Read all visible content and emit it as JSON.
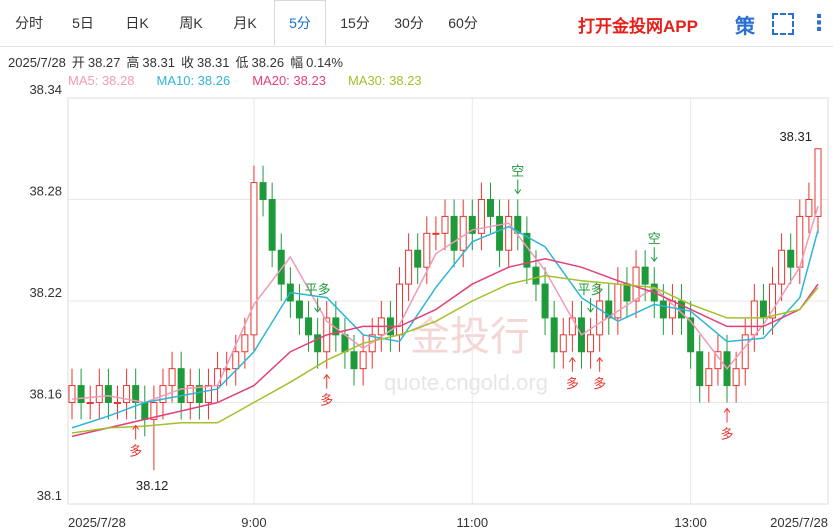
{
  "tabs": [
    "分时",
    "5日",
    "日K",
    "周K",
    "月K",
    "5分",
    "15分",
    "30分",
    "60分"
  ],
  "active_tab": 5,
  "app_link": "打开金投网APP",
  "icon": "策",
  "info": {
    "date": "2025/7/28",
    "items": [
      {
        "label": "开",
        "value": "38.27"
      },
      {
        "label": "高",
        "value": "38.31"
      },
      {
        "label": "收",
        "value": "38.31"
      },
      {
        "label": "低",
        "value": "38.26"
      },
      {
        "label": "幅",
        "value": "0.14%"
      }
    ]
  },
  "watermark": [
    "金投行",
    "quote.cngold.org"
  ],
  "chart_data": {
    "type": "candlestick",
    "up_color": "#e8352f",
    "down_color": "#1e9a3a",
    "grid": true,
    "categories": [
      "2025/7/28",
      null,
      null,
      null,
      null,
      null,
      null,
      null,
      null,
      null,
      null,
      null,
      null,
      null,
      null,
      null,
      null,
      null,
      null,
      null,
      "9:00",
      null,
      null,
      null,
      null,
      null,
      null,
      null,
      null,
      null,
      null,
      null,
      null,
      null,
      null,
      null,
      null,
      null,
      null,
      null,
      null,
      null,
      null,
      null,
      "11:00",
      null,
      null,
      null,
      null,
      null,
      null,
      null,
      null,
      null,
      null,
      null,
      null,
      null,
      null,
      null,
      null,
      null,
      null,
      null,
      null,
      null,
      null,
      null,
      "13:00",
      null,
      null,
      null,
      null,
      null,
      null,
      null,
      null,
      null,
      null,
      null,
      null,
      null,
      "2025/7/28"
    ],
    "open": [
      38.16,
      38.17,
      38.16,
      38.16,
      38.17,
      38.16,
      38.16,
      38.17,
      38.16,
      38.15,
      38.16,
      38.17,
      38.18,
      38.16,
      38.17,
      38.16,
      38.17,
      38.18,
      38.18,
      38.19,
      38.2,
      38.29,
      38.28,
      38.25,
      38.23,
      38.22,
      38.21,
      38.2,
      38.19,
      38.21,
      38.2,
      38.19,
      38.18,
      38.19,
      38.2,
      38.21,
      38.2,
      38.23,
      38.25,
      38.24,
      38.26,
      38.26,
      38.27,
      38.25,
      38.27,
      38.26,
      38.28,
      38.27,
      38.25,
      38.27,
      38.26,
      38.24,
      38.23,
      38.21,
      38.19,
      38.2,
      38.21,
      38.19,
      38.2,
      38.22,
      38.21,
      38.23,
      38.22,
      38.24,
      38.23,
      38.22,
      38.21,
      38.22,
      38.21,
      38.19,
      38.17,
      38.18,
      38.19,
      38.17,
      38.18,
      38.2,
      38.22,
      38.21,
      38.23,
      38.25,
      38.24,
      38.27,
      38.27
    ],
    "close": [
      38.17,
      38.16,
      38.16,
      38.17,
      38.16,
      38.16,
      38.17,
      38.16,
      38.15,
      38.16,
      38.17,
      38.18,
      38.16,
      38.17,
      38.16,
      38.17,
      38.18,
      38.18,
      38.19,
      38.2,
      38.29,
      38.28,
      38.25,
      38.23,
      38.22,
      38.21,
      38.2,
      38.19,
      38.21,
      38.2,
      38.19,
      38.18,
      38.19,
      38.2,
      38.21,
      38.2,
      38.23,
      38.25,
      38.24,
      38.26,
      38.26,
      38.27,
      38.25,
      38.27,
      38.26,
      38.28,
      38.27,
      38.25,
      38.27,
      38.26,
      38.24,
      38.23,
      38.21,
      38.19,
      38.2,
      38.21,
      38.19,
      38.2,
      38.22,
      38.21,
      38.23,
      38.22,
      38.24,
      38.23,
      38.22,
      38.21,
      38.22,
      38.21,
      38.19,
      38.17,
      38.18,
      38.19,
      38.17,
      38.18,
      38.2,
      38.22,
      38.21,
      38.23,
      38.25,
      38.24,
      38.27,
      38.28,
      38.31
    ],
    "high": [
      38.18,
      38.18,
      38.17,
      38.18,
      38.18,
      38.17,
      38.18,
      38.18,
      38.17,
      38.17,
      38.18,
      38.19,
      38.19,
      38.18,
      38.18,
      38.18,
      38.19,
      38.19,
      38.2,
      38.21,
      38.3,
      38.3,
      38.29,
      38.26,
      38.24,
      38.23,
      38.22,
      38.21,
      38.22,
      38.22,
      38.21,
      38.2,
      38.2,
      38.21,
      38.22,
      38.22,
      38.24,
      38.26,
      38.26,
      38.27,
      38.27,
      38.28,
      38.28,
      38.28,
      38.28,
      38.29,
      38.29,
      38.28,
      38.28,
      38.28,
      38.27,
      38.25,
      38.24,
      38.22,
      38.21,
      38.22,
      38.22,
      38.21,
      38.23,
      38.23,
      38.24,
      38.24,
      38.25,
      38.25,
      38.24,
      38.23,
      38.23,
      38.23,
      38.22,
      38.2,
      38.19,
      38.2,
      38.2,
      38.19,
      38.21,
      38.23,
      38.23,
      38.24,
      38.26,
      38.26,
      38.28,
      38.29,
      38.31
    ],
    "low": [
      38.15,
      38.15,
      38.15,
      38.15,
      38.15,
      38.15,
      38.15,
      38.15,
      38.14,
      38.12,
      38.15,
      38.16,
      38.15,
      38.15,
      38.15,
      38.15,
      38.16,
      38.17,
      38.17,
      38.18,
      38.19,
      38.27,
      38.24,
      38.22,
      38.21,
      38.2,
      38.19,
      38.18,
      38.18,
      38.19,
      38.18,
      38.17,
      38.17,
      38.18,
      38.19,
      38.19,
      38.19,
      38.22,
      38.23,
      38.23,
      38.25,
      38.25,
      38.24,
      38.24,
      38.25,
      38.25,
      38.26,
      38.24,
      38.24,
      38.25,
      38.23,
      38.22,
      38.2,
      38.18,
      38.18,
      38.19,
      38.18,
      38.18,
      38.19,
      38.2,
      38.2,
      38.21,
      38.21,
      38.22,
      38.21,
      38.2,
      38.2,
      38.2,
      38.18,
      38.16,
      38.16,
      38.17,
      38.16,
      38.16,
      38.17,
      38.19,
      38.2,
      38.2,
      38.22,
      38.23,
      38.23,
      38.26,
      38.26
    ],
    "ylim": [
      38.1,
      38.34
    ],
    "yticks": [
      38.1,
      38.16,
      38.22,
      38.28,
      38.34
    ],
    "series": [
      {
        "name": "MA5: 38.28",
        "color": "#f29ab8",
        "x": [
          0,
          4,
          8,
          12,
          16,
          20,
          24,
          28,
          32,
          36,
          40,
          44,
          48,
          52,
          56,
          60,
          64,
          68,
          72,
          76,
          80,
          82
        ],
        "values": [
          38.162,
          38.164,
          38.16,
          38.168,
          38.17,
          38.218,
          38.246,
          38.208,
          38.192,
          38.206,
          38.248,
          38.262,
          38.266,
          38.238,
          38.2,
          38.214,
          38.228,
          38.208,
          38.18,
          38.206,
          38.24,
          38.276
        ]
      },
      {
        "name": "MA10: 38.26",
        "color": "#2fb5d6",
        "x": [
          0,
          4,
          8,
          12,
          16,
          20,
          24,
          28,
          32,
          36,
          40,
          44,
          48,
          52,
          56,
          60,
          64,
          68,
          72,
          76,
          80,
          82
        ],
        "values": [
          38.145,
          38.152,
          38.16,
          38.164,
          38.168,
          38.19,
          38.225,
          38.222,
          38.2,
          38.196,
          38.228,
          38.255,
          38.264,
          38.252,
          38.222,
          38.208,
          38.218,
          38.214,
          38.196,
          38.198,
          38.222,
          38.262
        ]
      },
      {
        "name": "MA20: 38.23",
        "color": "#e2407a",
        "x": [
          0,
          4,
          8,
          12,
          16,
          20,
          24,
          28,
          32,
          36,
          40,
          44,
          48,
          52,
          56,
          60,
          64,
          68,
          72,
          76,
          80,
          82
        ],
        "values": [
          38.14,
          38.145,
          38.15,
          38.155,
          38.16,
          38.17,
          38.19,
          38.2,
          38.205,
          38.205,
          38.215,
          38.23,
          38.24,
          38.245,
          38.24,
          38.232,
          38.225,
          38.215,
          38.205,
          38.205,
          38.215,
          38.23
        ]
      },
      {
        "name": "MA30: 38.23",
        "color": "#a5bf2c",
        "x": [
          0,
          4,
          8,
          12,
          16,
          20,
          24,
          28,
          32,
          36,
          40,
          44,
          48,
          52,
          56,
          60,
          64,
          68,
          72,
          76,
          80,
          82
        ],
        "values": [
          38.142,
          38.145,
          38.146,
          38.148,
          38.148,
          38.16,
          38.172,
          38.185,
          38.195,
          38.2,
          38.208,
          38.22,
          38.23,
          38.235,
          38.232,
          38.23,
          38.228,
          38.218,
          38.21,
          38.21,
          38.215,
          38.228
        ]
      }
    ],
    "signals": [
      {
        "label": "多",
        "index": 7
      },
      {
        "label": "平多",
        "index": 27
      },
      {
        "label": "多",
        "index": 28
      },
      {
        "label": "空",
        "index": 49
      },
      {
        "label": "平多",
        "index": 57
      },
      {
        "label": "多",
        "index": 55
      },
      {
        "label": "多",
        "index": 58
      },
      {
        "label": "空",
        "index": 64
      },
      {
        "label": "多",
        "index": 72
      }
    ],
    "extremes": {
      "low_index": 9,
      "high_index": 82
    }
  }
}
